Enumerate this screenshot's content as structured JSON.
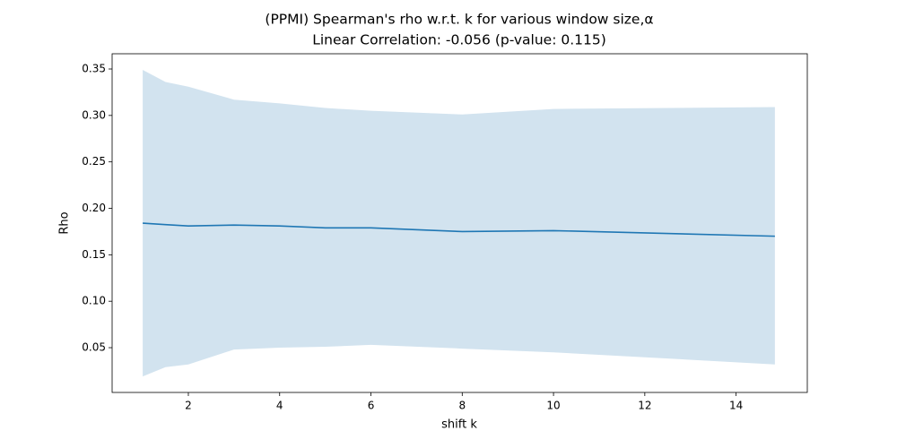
{
  "chart_data": {
    "type": "line",
    "title": "(PPMI) Spearman's rho w.r.t. k for various window size,α",
    "subtitle": "Linear Correlation: -0.056 (p-value: 0.115)",
    "x_label": "shift k",
    "y_label": "Rho",
    "x": [
      1,
      1.5,
      2,
      3,
      4,
      5,
      6,
      8,
      10,
      14.85
    ],
    "series": [
      {
        "color": "#1f77b4",
        "band_color": "#d2e3ef",
        "values": [
          0.184,
          0.1825,
          0.181,
          0.182,
          0.181,
          0.179,
          0.179,
          0.175,
          0.176,
          0.17
        ],
        "upper": [
          0.349,
          0.336,
          0.331,
          0.317,
          0.313,
          0.308,
          0.305,
          0.301,
          0.307,
          0.309
        ],
        "lower": [
          0.019,
          0.029,
          0.032,
          0.048,
          0.05,
          0.051,
          0.053,
          0.049,
          0.045,
          0.032
        ]
      }
    ],
    "xlim": [
      0.33,
      15.56
    ],
    "xticks": [
      2,
      4,
      6,
      8,
      10,
      12,
      14
    ],
    "ylim": [
      0.0018,
      0.3664
    ],
    "yticks": [
      0.05,
      {
        "value": 0.1,
        "label": "0.10"
      },
      0.15,
      {
        "value": 0.2,
        "label": "0.20"
      },
      0.25,
      {
        "value": 0.3,
        "label": "0.30"
      },
      0.35
    ],
    "grid": false
  }
}
